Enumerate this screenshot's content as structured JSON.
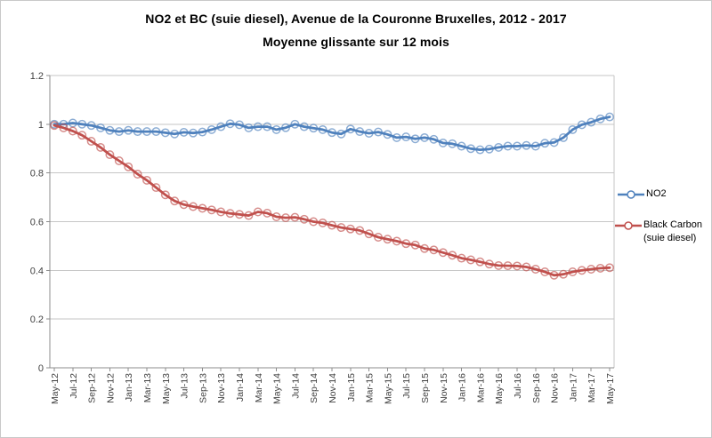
{
  "chart": {
    "title_line1": "NO2 et BC (suie diesel), Avenue de la Couronne Bruxelles, 2012 - 2017",
    "title_line2": "Moyenne glissante sur 12 mois",
    "legend": {
      "no2": {
        "label": "NO2"
      },
      "black_carbon": {
        "label_line1": "Black Carbon",
        "label_line2": "(suie diesel)"
      }
    },
    "colors": {
      "no2": "#4F81BD",
      "black_carbon": "#C0504D",
      "gridline": "#C6C6C6",
      "axis_line": "#8C8C8C",
      "tick_label": "#404040",
      "border": "#C9C9C9"
    }
  },
  "chart_data": {
    "type": "line",
    "title": "NO2 et BC (suie diesel), Avenue de la Couronne Bruxelles, 2012 - 2017",
    "subtitle": "Moyenne glissante sur 12 mois",
    "x": [
      "May-12",
      "Jun-12",
      "Jul-12",
      "Aug-12",
      "Sep-12",
      "Oct-12",
      "Nov-12",
      "Dec-12",
      "Jan-13",
      "Feb-13",
      "Mar-13",
      "Apr-13",
      "May-13",
      "Jun-13",
      "Jul-13",
      "Aug-13",
      "Sep-13",
      "Oct-13",
      "Nov-13",
      "Dec-13",
      "Jan-14",
      "Feb-14",
      "Mar-14",
      "Apr-14",
      "May-14",
      "Jun-14",
      "Jul-14",
      "Aug-14",
      "Sep-14",
      "Oct-14",
      "Nov-14",
      "Dec-14",
      "Jan-15",
      "Feb-15",
      "Mar-15",
      "Apr-15",
      "May-15",
      "Jun-15",
      "Jul-15",
      "Aug-15",
      "Sep-15",
      "Oct-15",
      "Nov-15",
      "Dec-15",
      "Jan-16",
      "Feb-16",
      "Mar-16",
      "Apr-16",
      "May-16",
      "Jun-16",
      "Jul-16",
      "Aug-16",
      "Sep-16",
      "Oct-16",
      "Nov-16",
      "Dec-16",
      "Jan-17",
      "Feb-17",
      "Mar-17",
      "Apr-17",
      "May-17"
    ],
    "x_tick_every": 2,
    "ylim": [
      0,
      1.2
    ],
    "yticks": [
      0,
      0.2,
      0.4,
      0.6,
      0.8,
      1,
      1.2
    ],
    "ytick_labels": [
      "0",
      "0.2",
      "0.4",
      "0.6",
      "0.8",
      "1",
      "1.2"
    ],
    "grid": true,
    "legend_position": "right",
    "marker": "open-circle",
    "series": [
      {
        "name": "NO2",
        "color": "#4F81BD",
        "values": [
          1.0,
          1.0,
          1.005,
          1.0,
          0.995,
          0.985,
          0.975,
          0.97,
          0.975,
          0.97,
          0.97,
          0.97,
          0.965,
          0.96,
          0.967,
          0.964,
          0.968,
          0.978,
          0.99,
          1.002,
          0.998,
          0.985,
          0.99,
          0.99,
          0.978,
          0.986,
          1.0,
          0.99,
          0.984,
          0.978,
          0.966,
          0.96,
          0.98,
          0.97,
          0.963,
          0.968,
          0.958,
          0.945,
          0.948,
          0.94,
          0.945,
          0.938,
          0.923,
          0.92,
          0.91,
          0.9,
          0.895,
          0.898,
          0.905,
          0.91,
          0.91,
          0.913,
          0.91,
          0.922,
          0.925,
          0.945,
          0.978,
          0.998,
          1.008,
          1.022,
          1.03
        ]
      },
      {
        "name": "Black Carbon (suie diesel)",
        "color": "#C0504D",
        "values": [
          0.995,
          0.985,
          0.972,
          0.955,
          0.93,
          0.905,
          0.875,
          0.85,
          0.825,
          0.795,
          0.77,
          0.74,
          0.71,
          0.685,
          0.67,
          0.662,
          0.655,
          0.648,
          0.64,
          0.634,
          0.63,
          0.625,
          0.64,
          0.635,
          0.62,
          0.616,
          0.618,
          0.61,
          0.6,
          0.595,
          0.585,
          0.576,
          0.57,
          0.564,
          0.55,
          0.536,
          0.528,
          0.52,
          0.51,
          0.504,
          0.49,
          0.484,
          0.473,
          0.462,
          0.45,
          0.443,
          0.435,
          0.426,
          0.42,
          0.419,
          0.418,
          0.414,
          0.405,
          0.394,
          0.38,
          0.384,
          0.394,
          0.4,
          0.405,
          0.409,
          0.411
        ]
      }
    ]
  }
}
